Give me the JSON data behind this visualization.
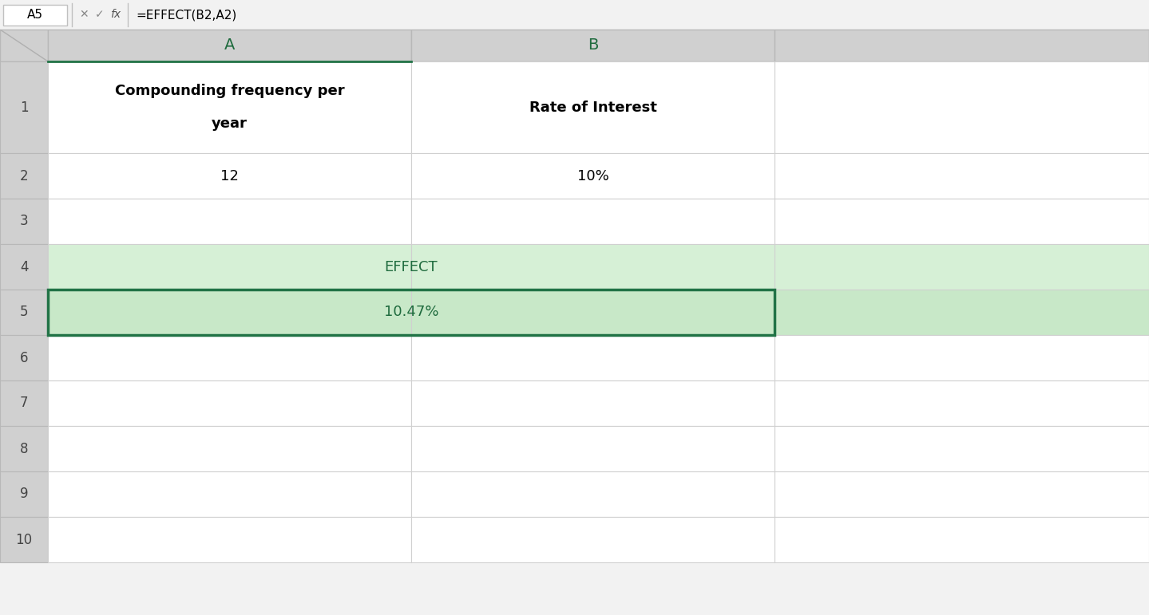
{
  "fig_width": 14.39,
  "fig_height": 7.71,
  "bg_color": "#f2f2f2",
  "toolbar_bg": "#f2f2f2",
  "formula_bar_text": "=EFFECT(B2,A2)",
  "cell_ref_text": "A5",
  "header_bg": "#d0d0d0",
  "header_text_color": "#1f6b3e",
  "grid_color": "#d0d0d0",
  "cell_bg_white": "#ffffff",
  "cell_bg_green_light": "#d6f0d6",
  "cell_bg_green_selected": "#c8e8c8",
  "selected_border_color": "#217346",
  "green_text_color": "#1f6b3e",
  "black_text_color": "#000000",
  "row1_a_line1": "Compounding frequency per",
  "row1_a_line2": "year",
  "row1_b_text": "Rate of Interest",
  "row2_a_text": "12",
  "row2_b_text": "10%",
  "row4_text": "EFFECT",
  "row5_text": "10.47%",
  "row_numbers": [
    "1",
    "2",
    "3",
    "4",
    "5",
    "6",
    "7",
    "8",
    "9",
    "10"
  ]
}
